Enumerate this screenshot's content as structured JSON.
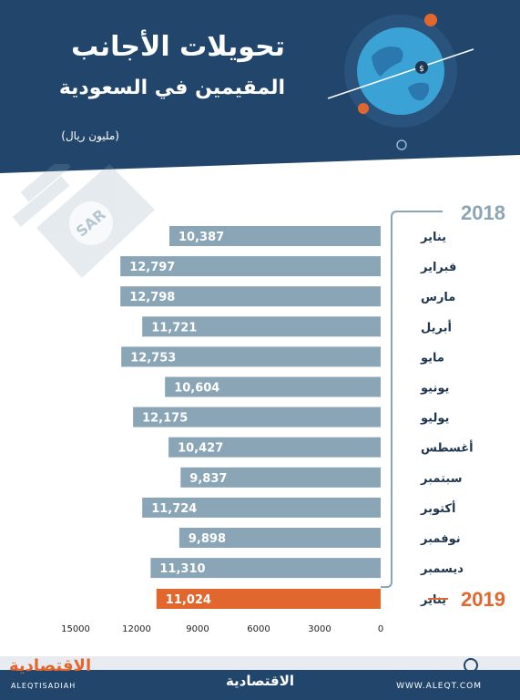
{
  "header": {
    "title_line1": "تحويلات الأجانب",
    "title_line2": "المقيمين في السعودية",
    "unit": "(مليون ريال)"
  },
  "decor": {
    "sar_badge": "SAR",
    "globe_icon": "globe-dollar-icon"
  },
  "chart_data": {
    "type": "bar",
    "orientation": "horizontal",
    "x_direction": "right-to-left",
    "groups": [
      {
        "year": "2018",
        "categories": [
          "يناير",
          "فبراير",
          "مارس",
          "أبريل",
          "مايو",
          "يونيو",
          "يوليو",
          "أغسطس",
          "سبتمبر",
          "أكتوبر",
          "نوفمبر",
          "ديسمبر"
        ],
        "values": [
          10387,
          12797,
          12798,
          11721,
          12753,
          10604,
          12175,
          10427,
          9837,
          11724,
          9898,
          11310
        ],
        "labels": [
          "10,387",
          "12,797",
          "12,798",
          "11,721",
          "12,753",
          "10,604",
          "12,175",
          "10,427",
          "9,837",
          "11,724",
          "9,898",
          "11,310"
        ],
        "color": "#8aa5b6"
      },
      {
        "year": "2019",
        "categories": [
          "يناير"
        ],
        "values": [
          11024
        ],
        "labels": [
          "11,024"
        ],
        "color": "#e2672f"
      }
    ],
    "xlim": [
      0,
      15000
    ],
    "ticks": [
      0,
      3000,
      6000,
      9000,
      12000,
      15000
    ],
    "tick_labels": [
      "0",
      "3000",
      "6000",
      "9000",
      "12000",
      "15000"
    ],
    "grid": false,
    "colors": {
      "year_2018": "#8aa5b6",
      "year_2019": "#e2672f",
      "text_dark": "#1f3650"
    }
  },
  "footer": {
    "brand_left": "الاقتصادية",
    "brand_left_latin": "ALEQTISADIAH",
    "brand_center": "الاقتصادية",
    "website": "WWW.ALEQT.COM"
  }
}
